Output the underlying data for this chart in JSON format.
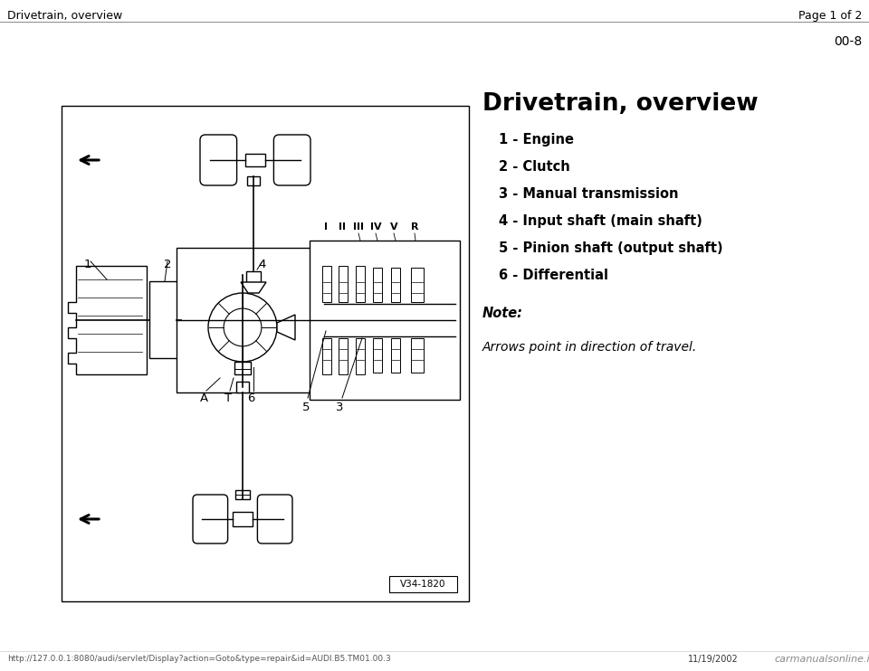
{
  "page_header_left": "Drivetrain, overview",
  "page_header_right": "Page 1 of 2",
  "page_number": "00-8",
  "section_title": "Drivetrain, overview",
  "items": [
    "1 - Engine",
    "2 - Clutch",
    "3 - Manual transmission",
    "4 - Input shaft (main shaft)",
    "5 - Pinion shaft (output shaft)",
    "6 - Differential"
  ],
  "note_label": "Note:",
  "note_text": "Arrows point in direction of travel.",
  "diagram_ref": "V34-1820",
  "footer_url": "http://127.0.0.1:8080/audi/servlet/Display?action=Goto&type=repair&id=AUDI.B5.TM01.00.3",
  "footer_date": "11/19/2002",
  "footer_logo": "carmanualsonline.info",
  "bg_color": "#ffffff",
  "text_color": "#000000",
  "line_color": "#000000"
}
